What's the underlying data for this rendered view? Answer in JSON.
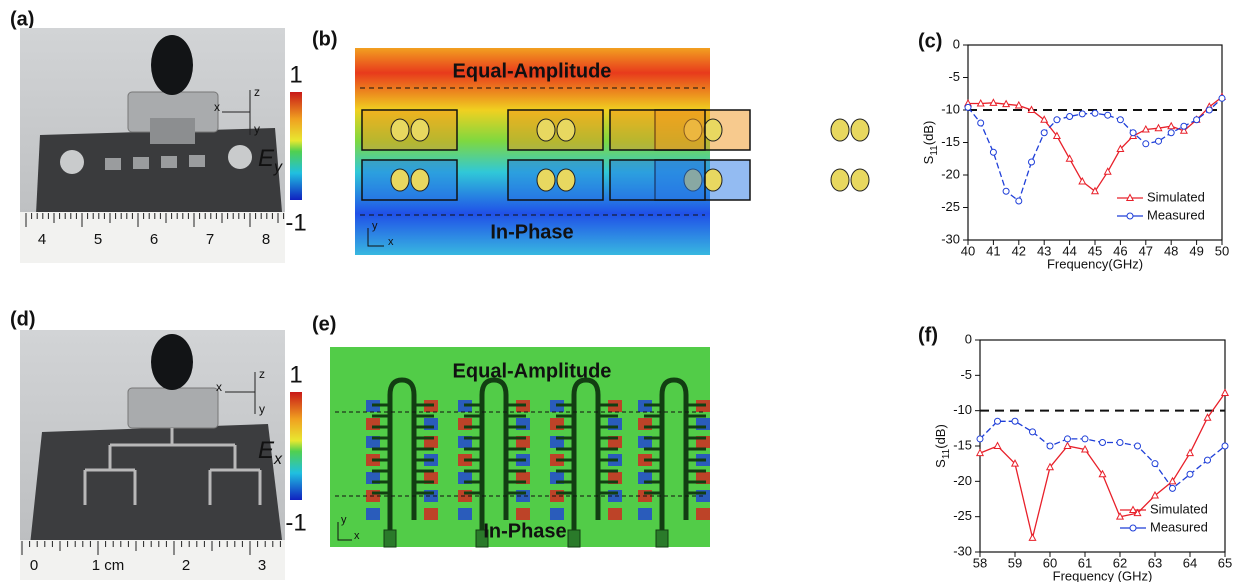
{
  "panel_labels": [
    "(a)",
    "(b)",
    "(c)",
    "(d)",
    "(e)",
    "(f)"
  ],
  "photos": [
    {
      "ruler": [
        "4",
        "5",
        "6",
        "7",
        "8"
      ],
      "axes": [
        "x",
        "y",
        "z"
      ]
    },
    {
      "ruler": [
        "0",
        "1 cm",
        "2",
        "3"
      ],
      "axes": [
        "x",
        "y",
        "z"
      ]
    }
  ],
  "colorbars": [
    {
      "max": 1,
      "min": -1,
      "symbol": "E",
      "sub": "y"
    },
    {
      "max": 1,
      "min": -1,
      "symbol": "E",
      "sub": "x"
    }
  ],
  "field_maps": [
    {
      "top": "Equal-Amplitude",
      "bottom": "In-Phase",
      "axes": [
        "y",
        "x"
      ]
    },
    {
      "top": "Equal-Amplitude",
      "bottom": "In-Phase",
      "axes": [
        "y",
        "x"
      ]
    }
  ],
  "chart_data": [
    {
      "type": "line",
      "x_label": "Frequency(GHz)",
      "y_label": "S",
      "y_label_sub": "11",
      "y_label_unit": "(dB)",
      "x": [
        40,
        40.5,
        41,
        41.5,
        42,
        42.5,
        43,
        43.5,
        44,
        44.5,
        45,
        45.5,
        46,
        46.5,
        47,
        47.5,
        48,
        48.5,
        49,
        49.5,
        50
      ],
      "series": [
        {
          "name": "Simulated",
          "color": "#e8202a",
          "marker": "triangle",
          "values": [
            -9,
            -9,
            -8.9,
            -9.1,
            -9.3,
            -10,
            -11.5,
            -14,
            -17.5,
            -21,
            -22.5,
            -19.5,
            -16,
            -14,
            -13,
            -12.8,
            -12.5,
            -13.2,
            -11.5,
            -9.5,
            -8
          ]
        },
        {
          "name": "Measured",
          "color": "#1f3fd8",
          "marker": "circle",
          "values": [
            -9.6,
            -12,
            -16.5,
            -22.5,
            -24,
            -18,
            -13.5,
            -11.5,
            -11,
            -10.6,
            -10.5,
            -10.8,
            -11.5,
            -13.5,
            -15.2,
            -14.8,
            -13.5,
            -12.5,
            -11.5,
            -10,
            -8.2
          ]
        }
      ],
      "reference": -10,
      "xlim": [
        40,
        50
      ],
      "xticks": [
        40,
        41,
        42,
        43,
        44,
        45,
        46,
        47,
        48,
        49,
        50
      ],
      "ylim": [
        -30,
        0
      ],
      "yticks": [
        0,
        -5,
        -10,
        -15,
        -20,
        -25,
        -30
      ]
    },
    {
      "type": "line",
      "x_label": "Frequency (GHz)",
      "y_label": "S",
      "y_label_sub": "11",
      "y_label_unit": "(dB)",
      "x": [
        58,
        58.5,
        59,
        59.5,
        60,
        60.5,
        61,
        61.5,
        62,
        62.5,
        63,
        63.5,
        64,
        64.5,
        65
      ],
      "series": [
        {
          "name": "Simulated",
          "color": "#e8202a",
          "marker": "triangle",
          "values": [
            -16,
            -15,
            -17.5,
            -28,
            -18,
            -15,
            -15.5,
            -19,
            -25,
            -24.5,
            -22,
            -20,
            -16,
            -11,
            -7.5
          ]
        },
        {
          "name": "Measured",
          "color": "#1f3fd8",
          "marker": "circle",
          "values": [
            -14,
            -11.5,
            -11.5,
            -13,
            -15,
            -14,
            -14,
            -14.5,
            -14.5,
            -15,
            -17.5,
            -21,
            -19,
            -17,
            -15
          ]
        }
      ],
      "reference": -10,
      "xlim": [
        58,
        65
      ],
      "xticks": [
        58,
        59,
        60,
        61,
        62,
        63,
        64,
        65
      ],
      "ylim": [
        -30,
        0
      ],
      "yticks": [
        0,
        -5,
        -10,
        -15,
        -20,
        -25,
        -30
      ]
    }
  ]
}
